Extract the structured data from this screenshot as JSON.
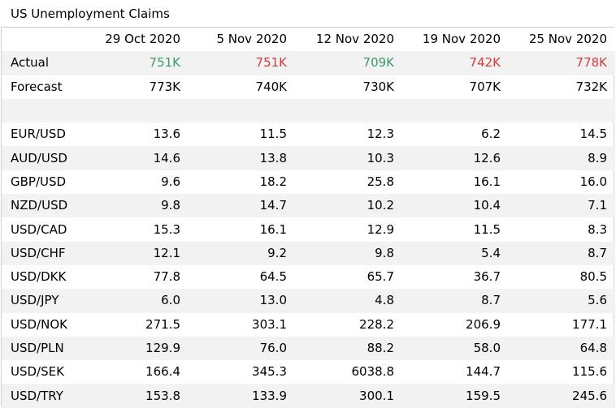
{
  "title": "US Unemployment Claims",
  "columns": [
    "29 Oct 2020",
    "5 Nov 2020",
    "12 Nov 2020",
    "19 Nov 2020",
    "25 Nov 2020"
  ],
  "actual": {
    "label": "Actual",
    "values": [
      "751K",
      "751K",
      "709K",
      "742K",
      "778K"
    ],
    "status": [
      "beat",
      "miss",
      "beat",
      "miss",
      "miss"
    ]
  },
  "forecast": {
    "label": "Forecast",
    "values": [
      "773K",
      "740K",
      "730K",
      "707K",
      "732K"
    ]
  },
  "pairs": [
    {
      "label": "EUR/USD",
      "values": [
        "13.6",
        "11.5",
        "12.3",
        "6.2",
        "14.5"
      ]
    },
    {
      "label": "AUD/USD",
      "values": [
        "14.6",
        "13.8",
        "10.3",
        "12.6",
        "8.9"
      ]
    },
    {
      "label": "GBP/USD",
      "values": [
        "9.6",
        "18.2",
        "25.8",
        "16.1",
        "16.0"
      ]
    },
    {
      "label": "NZD/USD",
      "values": [
        "9.8",
        "14.7",
        "10.2",
        "10.4",
        "7.1"
      ]
    },
    {
      "label": "USD/CAD",
      "values": [
        "15.3",
        "16.1",
        "12.9",
        "11.5",
        "8.3"
      ]
    },
    {
      "label": "USD/CHF",
      "values": [
        "12.1",
        "9.2",
        "9.8",
        "5.4",
        "8.7"
      ]
    },
    {
      "label": "USD/DKK",
      "values": [
        "77.8",
        "64.5",
        "65.7",
        "36.7",
        "80.5"
      ]
    },
    {
      "label": "USD/JPY",
      "values": [
        "6.0",
        "13.0",
        "4.8",
        "8.7",
        "5.6"
      ]
    },
    {
      "label": "USD/NOK",
      "values": [
        "271.5",
        "303.1",
        "228.2",
        "206.9",
        "177.1"
      ]
    },
    {
      "label": "USD/PLN",
      "values": [
        "129.9",
        "76.0",
        "88.2",
        "58.0",
        "64.8"
      ]
    },
    {
      "label": "USD/SEK",
      "values": [
        "166.4",
        "345.3",
        "6038.8",
        "144.7",
        "115.6"
      ]
    },
    {
      "label": "USD/TRY",
      "values": [
        "153.8",
        "133.9",
        "300.1",
        "159.5",
        "245.6"
      ]
    }
  ],
  "colors": {
    "beat": "#3a9a68",
    "miss": "#d23b3b",
    "shade": "#f2f2f2",
    "border": "#cfcfcf"
  }
}
